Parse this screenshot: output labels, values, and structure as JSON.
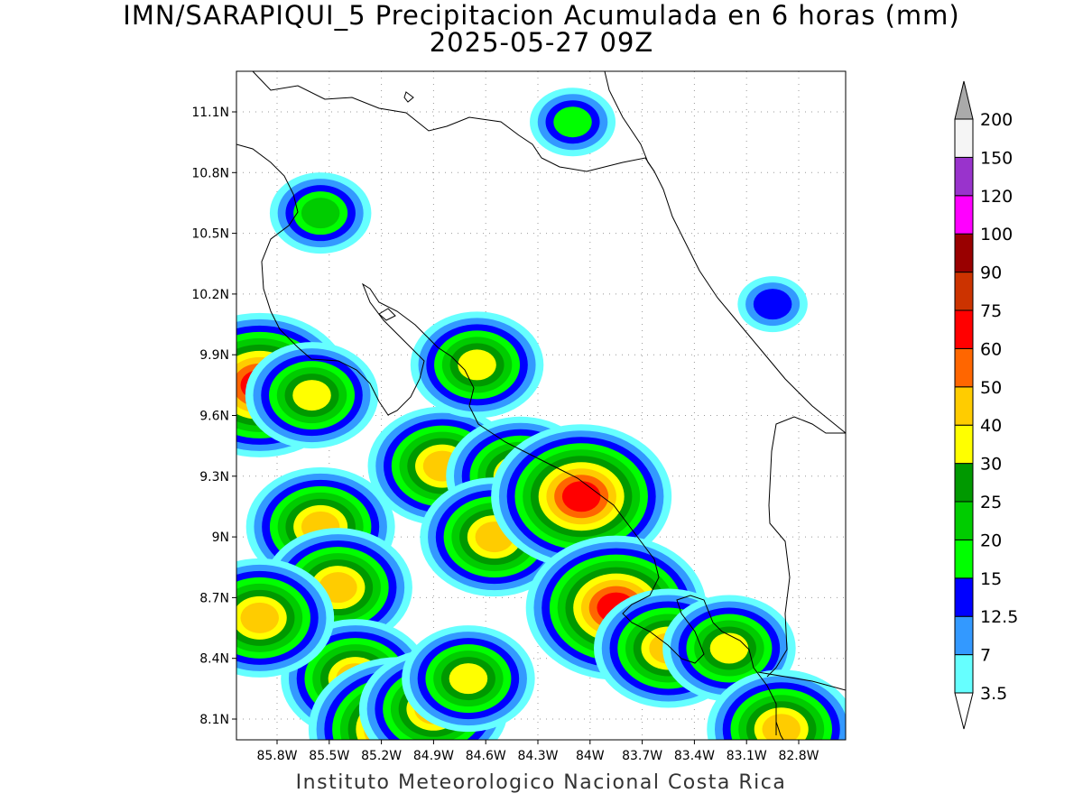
{
  "title": {
    "line1": "IMN/SARAPIQUI_5 Precipitacion Acumulada en 6 horas (mm)",
    "line2": "2025-05-27 09Z"
  },
  "credit": "Instituto Meteorologico Nacional Costa Rica",
  "map": {
    "lat_range": [
      8.0,
      11.3
    ],
    "lon_range": [
      -86.0,
      -83.0
    ],
    "lat_ticks": [
      {
        "value": 11.1,
        "label": "11.1N"
      },
      {
        "value": 10.8,
        "label": "10.8N"
      },
      {
        "value": 10.5,
        "label": "10.5N"
      },
      {
        "value": 10.2,
        "label": "10.2N"
      },
      {
        "value": 9.9,
        "label": "9.9N"
      },
      {
        "value": 9.6,
        "label": "9.6N"
      },
      {
        "value": 9.3,
        "label": "9.3N"
      },
      {
        "value": 9.0,
        "label": "9N"
      },
      {
        "value": 8.7,
        "label": "8.7N"
      },
      {
        "value": 8.4,
        "label": "8.4N"
      },
      {
        "value": 8.1,
        "label": "8.1N"
      }
    ],
    "lon_ticks": [
      {
        "value": -85.8,
        "label": "85.8W"
      },
      {
        "value": -85.5,
        "label": "85.5W"
      },
      {
        "value": -85.2,
        "label": "85.2W"
      },
      {
        "value": -84.9,
        "label": "84.9W"
      },
      {
        "value": -84.6,
        "label": "84.6W"
      },
      {
        "value": -84.3,
        "label": "84.3W"
      },
      {
        "value": -84.0,
        "label": "84W"
      },
      {
        "value": -83.7,
        "label": "83.7W"
      },
      {
        "value": -83.4,
        "label": "83.4W"
      },
      {
        "value": -83.1,
        "label": "83.1W"
      },
      {
        "value": -82.8,
        "label": "82.8W"
      }
    ],
    "precip_cells": [
      {
        "lon": -85.9,
        "lat": 9.75,
        "value": 60
      },
      {
        "lon": -85.55,
        "lat": 9.05,
        "value": 40
      },
      {
        "lon": -85.45,
        "lat": 8.75,
        "value": 40
      },
      {
        "lon": -85.35,
        "lat": 8.3,
        "value": 40
      },
      {
        "lon": -85.9,
        "lat": 8.6,
        "value": 40
      },
      {
        "lon": -85.1,
        "lat": 8.05,
        "value": 60
      },
      {
        "lon": -84.9,
        "lat": 8.15,
        "value": 40
      },
      {
        "lon": -84.7,
        "lat": 8.3,
        "value": 30
      },
      {
        "lon": -84.85,
        "lat": 9.35,
        "value": 40
      },
      {
        "lon": -84.4,
        "lat": 9.3,
        "value": 40
      },
      {
        "lon": -84.55,
        "lat": 9.0,
        "value": 40
      },
      {
        "lon": -84.05,
        "lat": 9.2,
        "value": 60
      },
      {
        "lon": -83.85,
        "lat": 8.65,
        "value": 60
      },
      {
        "lon": -83.55,
        "lat": 8.45,
        "value": 40
      },
      {
        "lon": -83.2,
        "lat": 8.45,
        "value": 30
      },
      {
        "lon": -84.65,
        "lat": 9.85,
        "value": 30
      },
      {
        "lon": -85.6,
        "lat": 9.7,
        "value": 30
      },
      {
        "lon": -84.1,
        "lat": 11.05,
        "value": 15
      },
      {
        "lon": -85.55,
        "lat": 10.6,
        "value": 20
      },
      {
        "lon": -82.95,
        "lat": 10.15,
        "value": 12.5
      },
      {
        "lon": -82.9,
        "lat": 8.05,
        "value": 40
      }
    ]
  },
  "colorbar": {
    "levels": [
      {
        "label": "3.5",
        "color": "#66ffff"
      },
      {
        "label": "7",
        "color": "#3399ff"
      },
      {
        "label": "12.5",
        "color": "#0000ff"
      },
      {
        "label": "15",
        "color": "#00ff00"
      },
      {
        "label": "20",
        "color": "#00cc00"
      },
      {
        "label": "25",
        "color": "#009900"
      },
      {
        "label": "30",
        "color": "#ffff00"
      },
      {
        "label": "40",
        "color": "#ffcc00"
      },
      {
        "label": "50",
        "color": "#ff6600"
      },
      {
        "label": "60",
        "color": "#ff0000"
      },
      {
        "label": "75",
        "color": "#cc3300"
      },
      {
        "label": "90",
        "color": "#990000"
      },
      {
        "label": "100",
        "color": "#ff00ff"
      },
      {
        "label": "120",
        "color": "#9933cc"
      },
      {
        "label": "150",
        "color": "#f5f5f5"
      },
      {
        "label": "200",
        "color": "#aaaaaa"
      }
    ]
  }
}
